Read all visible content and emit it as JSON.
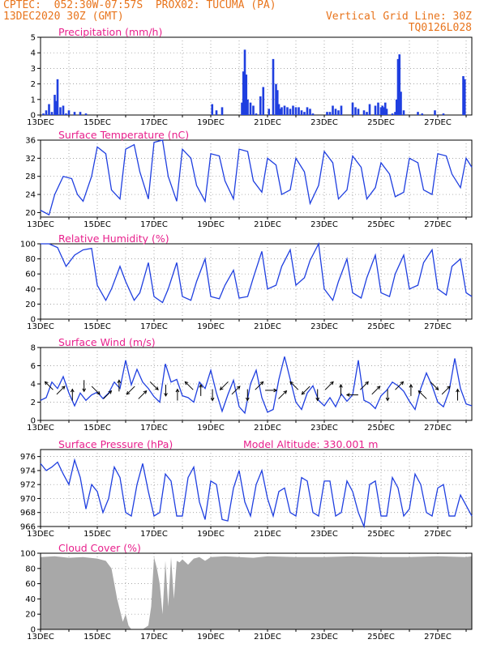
{
  "header": {
    "line1": "CPTEC:  052:30W-07:57S  PROX02: TUCUMA (PA)",
    "line2": "13DEC2020 30Z (GMT)",
    "grid_note": "Vertical Grid Line: 30Z",
    "code": "TQ0126L028",
    "altitude": "Model Altitude: 330.001 m",
    "colors": {
      "header": "#e8741c",
      "title": "#e8208c",
      "series": "#1f3fe0",
      "cloud": "#a8a8a8"
    }
  },
  "chart_data": [
    {
      "type": "bar",
      "title": "Precipitation (mm/h)",
      "ylim": [
        0,
        5
      ],
      "yticks": [
        "0",
        "1",
        "2",
        "3",
        "4",
        "5"
      ],
      "xticks": [
        "13DEC",
        "15DEC",
        "17DEC",
        "19DEC",
        "21DEC",
        "23DEC",
        "25DEC",
        "27DEC"
      ],
      "x_range_days": [
        13,
        28.2
      ],
      "series": [
        {
          "x": [
            13.1,
            13.2,
            13.3,
            13.4,
            13.5,
            13.55,
            13.6,
            13.7,
            13.8,
            13.9,
            14.0,
            14.2,
            14.4,
            14.6,
            19.05,
            19.2,
            19.4,
            20.1,
            20.15,
            20.2,
            20.25,
            20.3,
            20.4,
            20.5,
            20.6,
            20.75,
            20.85,
            21.05,
            21.2,
            21.3,
            21.35,
            21.4,
            21.45,
            21.5,
            21.6,
            21.7,
            21.8,
            21.9,
            22.0,
            22.1,
            22.2,
            22.3,
            22.4,
            22.5,
            22.6,
            23.1,
            23.2,
            23.3,
            23.4,
            23.5,
            23.6,
            24.0,
            24.1,
            24.2,
            24.4,
            24.5,
            24.6,
            24.8,
            24.9,
            25.0,
            25.05,
            25.1,
            25.15,
            25.2,
            25.4,
            25.5,
            25.55,
            25.6,
            25.65,
            25.7,
            25.8,
            26.3,
            26.45,
            26.9,
            27.2,
            27.9,
            27.95
          ],
          "values": [
            0.1,
            0.3,
            0.7,
            0.2,
            1.3,
            0.9,
            2.3,
            0.5,
            0.6,
            0.1,
            0.3,
            0.2,
            0.2,
            0.1,
            0.7,
            0.3,
            0.5,
            0.8,
            2.8,
            4.2,
            2.6,
            1.0,
            0.8,
            0.6,
            0.1,
            1.2,
            1.8,
            0.4,
            3.6,
            2.0,
            1.6,
            0.7,
            0.4,
            0.5,
            0.6,
            0.5,
            0.4,
            0.6,
            0.5,
            0.5,
            0.3,
            0.2,
            0.5,
            0.4,
            0.1,
            0.2,
            0.2,
            0.6,
            0.4,
            0.3,
            0.6,
            0.8,
            0.5,
            0.4,
            0.3,
            0.2,
            0.7,
            0.6,
            0.8,
            0.5,
            0.6,
            0.5,
            0.8,
            0.4,
            0.1,
            0.2,
            1.0,
            3.6,
            3.9,
            1.5,
            0.3,
            0.2,
            0.1,
            0.3,
            0.1,
            2.5,
            2.3
          ]
        }
      ]
    },
    {
      "type": "line",
      "title": "Surface Temperature (nC)",
      "ylim": [
        19,
        36
      ],
      "yticks": [
        "20",
        "24",
        "28",
        "32",
        "36"
      ],
      "series": [
        {
          "x": [
            13.0,
            13.3,
            13.5,
            13.8,
            14.1,
            14.3,
            14.5,
            14.8,
            15.0,
            15.3,
            15.5,
            15.8,
            16.0,
            16.3,
            16.5,
            16.8,
            17.0,
            17.3,
            17.5,
            17.8,
            18.0,
            18.3,
            18.5,
            18.8,
            19.0,
            19.3,
            19.5,
            19.8,
            20.0,
            20.3,
            20.5,
            20.8,
            21.0,
            21.3,
            21.5,
            21.8,
            22.0,
            22.3,
            22.5,
            22.8,
            23.0,
            23.3,
            23.5,
            23.8,
            24.0,
            24.3,
            24.5,
            24.8,
            25.0,
            25.3,
            25.5,
            25.8,
            26.0,
            26.3,
            26.5,
            26.8,
            27.0,
            27.3,
            27.5,
            27.8,
            28.0,
            28.2
          ],
          "values": [
            20.5,
            19.5,
            24.0,
            28.0,
            27.5,
            24.0,
            22.5,
            28.0,
            34.5,
            33.0,
            25.0,
            23.0,
            34.0,
            35.0,
            29.0,
            23.0,
            35.5,
            36.0,
            28.0,
            22.5,
            34.0,
            32.0,
            26.0,
            22.5,
            33.0,
            32.5,
            27.0,
            23.0,
            34.0,
            33.5,
            27.0,
            24.5,
            32.0,
            30.5,
            24.0,
            25.0,
            32.0,
            29.0,
            22.0,
            26.0,
            33.5,
            31.0,
            23.0,
            25.0,
            32.5,
            30.0,
            23.0,
            25.5,
            31.0,
            28.5,
            23.5,
            24.5,
            32.0,
            31.0,
            25.0,
            24.0,
            33.0,
            32.5,
            28.5,
            25.5,
            32.0,
            30.0
          ]
        }
      ]
    },
    {
      "type": "line",
      "title": "Relative Humidity (%)",
      "ylim": [
        0,
        100
      ],
      "yticks": [
        "0",
        "20",
        "40",
        "60",
        "80",
        "100"
      ],
      "xticks": [
        "13DEC",
        "15DEC",
        "17DEC",
        "19DEC",
        "21DEC",
        "23DEC",
        "25DEC",
        "27DEC"
      ],
      "series": [
        {
          "x": [
            13.0,
            13.3,
            13.6,
            13.9,
            14.2,
            14.5,
            14.8,
            15.0,
            15.3,
            15.5,
            15.8,
            16.0,
            16.3,
            16.5,
            16.8,
            17.0,
            17.3,
            17.5,
            17.8,
            18.0,
            18.3,
            18.5,
            18.8,
            19.0,
            19.3,
            19.5,
            19.8,
            20.0,
            20.3,
            20.5,
            20.8,
            21.0,
            21.3,
            21.5,
            21.8,
            22.0,
            22.3,
            22.5,
            22.8,
            23.0,
            23.3,
            23.5,
            23.8,
            24.0,
            24.3,
            24.5,
            24.8,
            25.0,
            25.3,
            25.5,
            25.8,
            26.0,
            26.3,
            26.5,
            26.8,
            27.0,
            27.3,
            27.5,
            27.8,
            28.0,
            28.2
          ],
          "values": [
            100,
            100,
            95,
            70,
            85,
            92,
            94,
            45,
            25,
            40,
            70,
            50,
            25,
            35,
            75,
            30,
            22,
            40,
            75,
            30,
            25,
            50,
            80,
            30,
            27,
            45,
            65,
            28,
            30,
            55,
            90,
            40,
            45,
            70,
            92,
            45,
            55,
            78,
            100,
            40,
            25,
            50,
            80,
            35,
            28,
            55,
            85,
            35,
            30,
            60,
            85,
            40,
            45,
            75,
            92,
            40,
            32,
            70,
            80,
            35,
            30
          ]
        }
      ]
    },
    {
      "type": "line",
      "title": "Surface Wind (m/s)",
      "ylim": [
        0,
        8
      ],
      "yticks": [
        "0",
        "2",
        "4",
        "6",
        "8"
      ],
      "xticks": [
        "13DEC",
        "15DEC",
        "17DEC",
        "19DEC",
        "21DEC",
        "23DEC",
        "25DEC",
        "27DEC"
      ],
      "series": [
        {
          "x": [
            13.0,
            13.2,
            13.4,
            13.6,
            13.8,
            14.0,
            14.2,
            14.4,
            14.6,
            14.8,
            15.0,
            15.2,
            15.4,
            15.6,
            15.8,
            16.0,
            16.2,
            16.4,
            16.6,
            16.8,
            17.0,
            17.2,
            17.4,
            17.6,
            17.8,
            18.0,
            18.2,
            18.4,
            18.6,
            18.8,
            19.0,
            19.2,
            19.4,
            19.6,
            19.8,
            20.0,
            20.2,
            20.4,
            20.6,
            20.8,
            21.0,
            21.2,
            21.4,
            21.6,
            21.8,
            22.0,
            22.2,
            22.4,
            22.6,
            22.8,
            23.0,
            23.2,
            23.4,
            23.6,
            23.8,
            24.0,
            24.2,
            24.4,
            24.6,
            24.8,
            25.0,
            25.2,
            25.4,
            25.6,
            25.8,
            26.0,
            26.2,
            26.4,
            26.6,
            26.8,
            27.0,
            27.2,
            27.4,
            27.6,
            27.8,
            28.0,
            28.2
          ],
          "values": [
            2.2,
            2.5,
            4.2,
            3.5,
            4.8,
            3.0,
            1.6,
            3.0,
            2.2,
            2.8,
            3.1,
            2.4,
            3.0,
            4.2,
            3.5,
            6.6,
            3.9,
            5.6,
            4.2,
            3.5,
            2.6,
            2.0,
            6.2,
            4.2,
            4.5,
            2.7,
            2.5,
            2.0,
            4.2,
            3.5,
            5.5,
            3.0,
            1.0,
            2.8,
            4.4,
            1.5,
            0.8,
            4.0,
            5.5,
            2.5,
            0.9,
            1.2,
            4.5,
            7.0,
            4.5,
            2.0,
            1.2,
            3.0,
            3.8,
            2.2,
            1.6,
            2.5,
            1.5,
            2.9,
            2.1,
            2.8,
            6.6,
            2.2,
            1.9,
            1.3,
            2.7,
            3.3,
            4.2,
            3.8,
            3.2,
            2.1,
            1.2,
            3.5,
            5.2,
            3.8,
            2.0,
            1.5,
            3.2,
            6.8,
            3.5,
            1.8,
            1.6
          ]
        }
      ],
      "arrows_deg": [
        135,
        45,
        90,
        270,
        315,
        45,
        90,
        225,
        45,
        315,
        270,
        90,
        135,
        90,
        270,
        225,
        45,
        270,
        45,
        0,
        45,
        135,
        225,
        270,
        45,
        90,
        180,
        45,
        45,
        270,
        45,
        90,
        135,
        315,
        45,
        90
      ]
    },
    {
      "type": "line",
      "title": "Surface Pressure (hPa)",
      "ylim": [
        966,
        977
      ],
      "yticks": [
        "966",
        "968",
        "970",
        "972",
        "974",
        "976"
      ],
      "xticks": [
        "13DEC",
        "15DEC",
        "17DEC",
        "19DEC",
        "21DEC",
        "23DEC",
        "25DEC",
        "27DEC"
      ],
      "series": [
        {
          "x": [
            13.0,
            13.2,
            13.4,
            13.6,
            13.8,
            14.0,
            14.2,
            14.4,
            14.6,
            14.8,
            15.0,
            15.2,
            15.4,
            15.6,
            15.8,
            16.0,
            16.2,
            16.4,
            16.6,
            16.8,
            17.0,
            17.2,
            17.4,
            17.6,
            17.8,
            18.0,
            18.2,
            18.4,
            18.6,
            18.8,
            19.0,
            19.2,
            19.4,
            19.6,
            19.8,
            20.0,
            20.2,
            20.4,
            20.6,
            20.8,
            21.0,
            21.2,
            21.4,
            21.6,
            21.8,
            22.0,
            22.2,
            22.4,
            22.6,
            22.8,
            23.0,
            23.2,
            23.4,
            23.6,
            23.8,
            24.0,
            24.2,
            24.4,
            24.6,
            24.8,
            25.0,
            25.2,
            25.4,
            25.6,
            25.8,
            26.0,
            26.2,
            26.4,
            26.6,
            26.8,
            27.0,
            27.2,
            27.4,
            27.6,
            27.8,
            28.0,
            28.2
          ],
          "values": [
            975,
            974,
            974.5,
            975.2,
            973.5,
            972,
            975.5,
            973,
            968.5,
            972,
            971,
            968,
            970,
            974.5,
            973,
            968,
            967.5,
            972,
            975,
            971,
            967.5,
            968,
            973.5,
            972.5,
            967.5,
            967.5,
            973,
            974.5,
            969.5,
            967,
            972.5,
            972,
            967,
            966.8,
            971.5,
            974,
            969.5,
            967.5,
            972,
            974,
            970,
            967.5,
            971,
            971.5,
            968,
            967.5,
            973,
            972.5,
            968,
            967.5,
            972.5,
            972.5,
            967.5,
            968,
            972.5,
            971,
            968,
            966,
            972,
            972.5,
            967.5,
            967.5,
            973,
            971.5,
            967.5,
            968.5,
            973.5,
            972,
            968,
            967.5,
            971.5,
            972,
            967.5,
            967.5,
            970.5,
            969,
            967.5
          ]
        }
      ]
    },
    {
      "type": "area",
      "title": "Cloud Cover (%)",
      "ylim": [
        0,
        100
      ],
      "yticks": [
        "0",
        "20",
        "40",
        "60",
        "80",
        "100"
      ],
      "xticks": [
        "13DEC",
        "15DEC",
        "17DEC",
        "19DEC",
        "21DEC",
        "23DEC",
        "25DEC",
        "27DEC"
      ],
      "series": [
        {
          "x": [
            13.0,
            13.5,
            14.0,
            14.5,
            15.0,
            15.3,
            15.5,
            15.7,
            15.8,
            15.9,
            16.0,
            16.1,
            16.2,
            16.4,
            16.6,
            16.8,
            16.9,
            17.0,
            17.1,
            17.2,
            17.3,
            17.4,
            17.5,
            17.6,
            17.7,
            17.8,
            17.9,
            18.0,
            18.2,
            18.4,
            18.6,
            18.8,
            19.0,
            19.5,
            20.0,
            20.5,
            21.0,
            22.0,
            23.0,
            24.0,
            25.0,
            26.0,
            27.0,
            28.0,
            28.2
          ],
          "values": [
            95,
            96,
            94,
            95,
            93,
            90,
            80,
            40,
            25,
            10,
            20,
            5,
            0,
            0,
            0,
            5,
            30,
            95,
            80,
            60,
            20,
            90,
            30,
            95,
            40,
            90,
            88,
            92,
            85,
            93,
            95,
            90,
            95,
            96,
            95,
            94,
            96,
            95,
            95,
            96,
            95,
            95,
            96,
            95,
            96
          ]
        }
      ]
    }
  ]
}
